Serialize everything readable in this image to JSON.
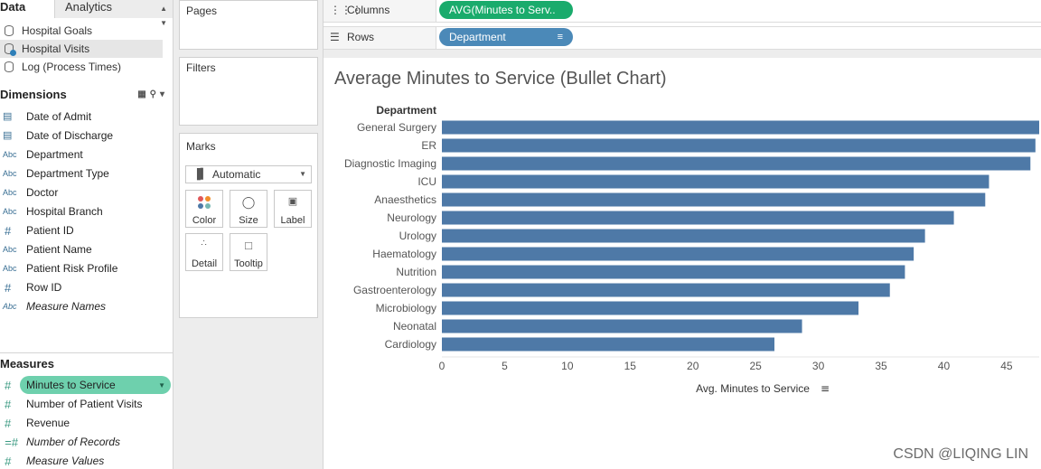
{
  "data_pane": {
    "tab_data": "Data",
    "tab_analytics": "Analytics",
    "datasources": [
      {
        "label": "Hospital Goals"
      },
      {
        "label": "Hospital Visits"
      },
      {
        "label": "Log (Process Times)"
      }
    ],
    "dimensions_header": "Dimensions",
    "dimensions": [
      {
        "icon": "calendar",
        "type_text": "",
        "label": "Date of Admit"
      },
      {
        "icon": "calendar",
        "type_text": "",
        "label": "Date of Discharge"
      },
      {
        "icon": "string",
        "type_text": "Abc",
        "label": "Department"
      },
      {
        "icon": "string",
        "type_text": "Abc",
        "label": "Department Type"
      },
      {
        "icon": "string",
        "type_text": "Abc",
        "label": "Doctor"
      },
      {
        "icon": "string",
        "type_text": "Abc",
        "label": "Hospital Branch"
      },
      {
        "icon": "number",
        "type_text": "#",
        "label": "Patient ID"
      },
      {
        "icon": "string",
        "type_text": "Abc",
        "label": "Patient Name"
      },
      {
        "icon": "string",
        "type_text": "Abc",
        "label": "Patient Risk Profile"
      },
      {
        "icon": "number",
        "type_text": "#",
        "label": "Row ID"
      },
      {
        "icon": "string",
        "type_text": "Abc",
        "label": "Measure Names"
      }
    ],
    "measures_header": "Measures",
    "measures": [
      {
        "icon": "number",
        "type_text": "#",
        "label": "Minutes to Service"
      },
      {
        "icon": "number",
        "type_text": "#",
        "label": "Number of Patient Visits"
      },
      {
        "icon": "number",
        "type_text": "#",
        "label": "Revenue"
      },
      {
        "icon": "calc-number",
        "type_text": "=#",
        "label": "Number of Records"
      },
      {
        "icon": "number",
        "type_text": "#",
        "label": "Measure Values"
      }
    ]
  },
  "cards": {
    "pages": "Pages",
    "filters": "Filters",
    "marks": "Marks",
    "mark_type": "Automatic",
    "buttons": [
      {
        "label": "Color",
        "icon": "color-dots-icon"
      },
      {
        "label": "Size",
        "icon": "size-icon"
      },
      {
        "label": "Label",
        "icon": "label-icon"
      },
      {
        "label": "Detail",
        "icon": "detail-icon"
      },
      {
        "label": "Tooltip",
        "icon": "tooltip-icon"
      }
    ]
  },
  "shelves": {
    "columns_label": "Columns",
    "columns_pill": "AVG(Minutes to Serv..",
    "rows_label": "Rows",
    "rows_pill": "Department"
  },
  "colors": {
    "bar": "#4e79a7",
    "columns_pill": "#1aab6c",
    "rows_pill": "#4b89b8",
    "selected_measure": "#6ed0ad"
  },
  "chart_data": {
    "type": "bar",
    "orientation": "horizontal",
    "title": "Average Minutes to Service (Bullet Chart)",
    "category_header": "Department",
    "xlabel": "Avg. Minutes to Service",
    "categories": [
      "General Surgery",
      "ER",
      "Diagnostic Imaging",
      "ICU",
      "Anaesthetics",
      "Neurology",
      "Urology",
      "Haematology",
      "Nutrition",
      "Gastroenterology",
      "Microbiology",
      "Neonatal",
      "Cardiology"
    ],
    "values": [
      47.6,
      47.3,
      46.9,
      43.6,
      43.3,
      40.8,
      38.5,
      37.6,
      36.9,
      35.7,
      33.2,
      28.7,
      26.5
    ],
    "xlim": [
      0,
      47.6
    ],
    "xticks": [
      0,
      5,
      10,
      15,
      20,
      25,
      30,
      35,
      40,
      45
    ]
  },
  "watermark": "CSDN @LIQING LIN"
}
